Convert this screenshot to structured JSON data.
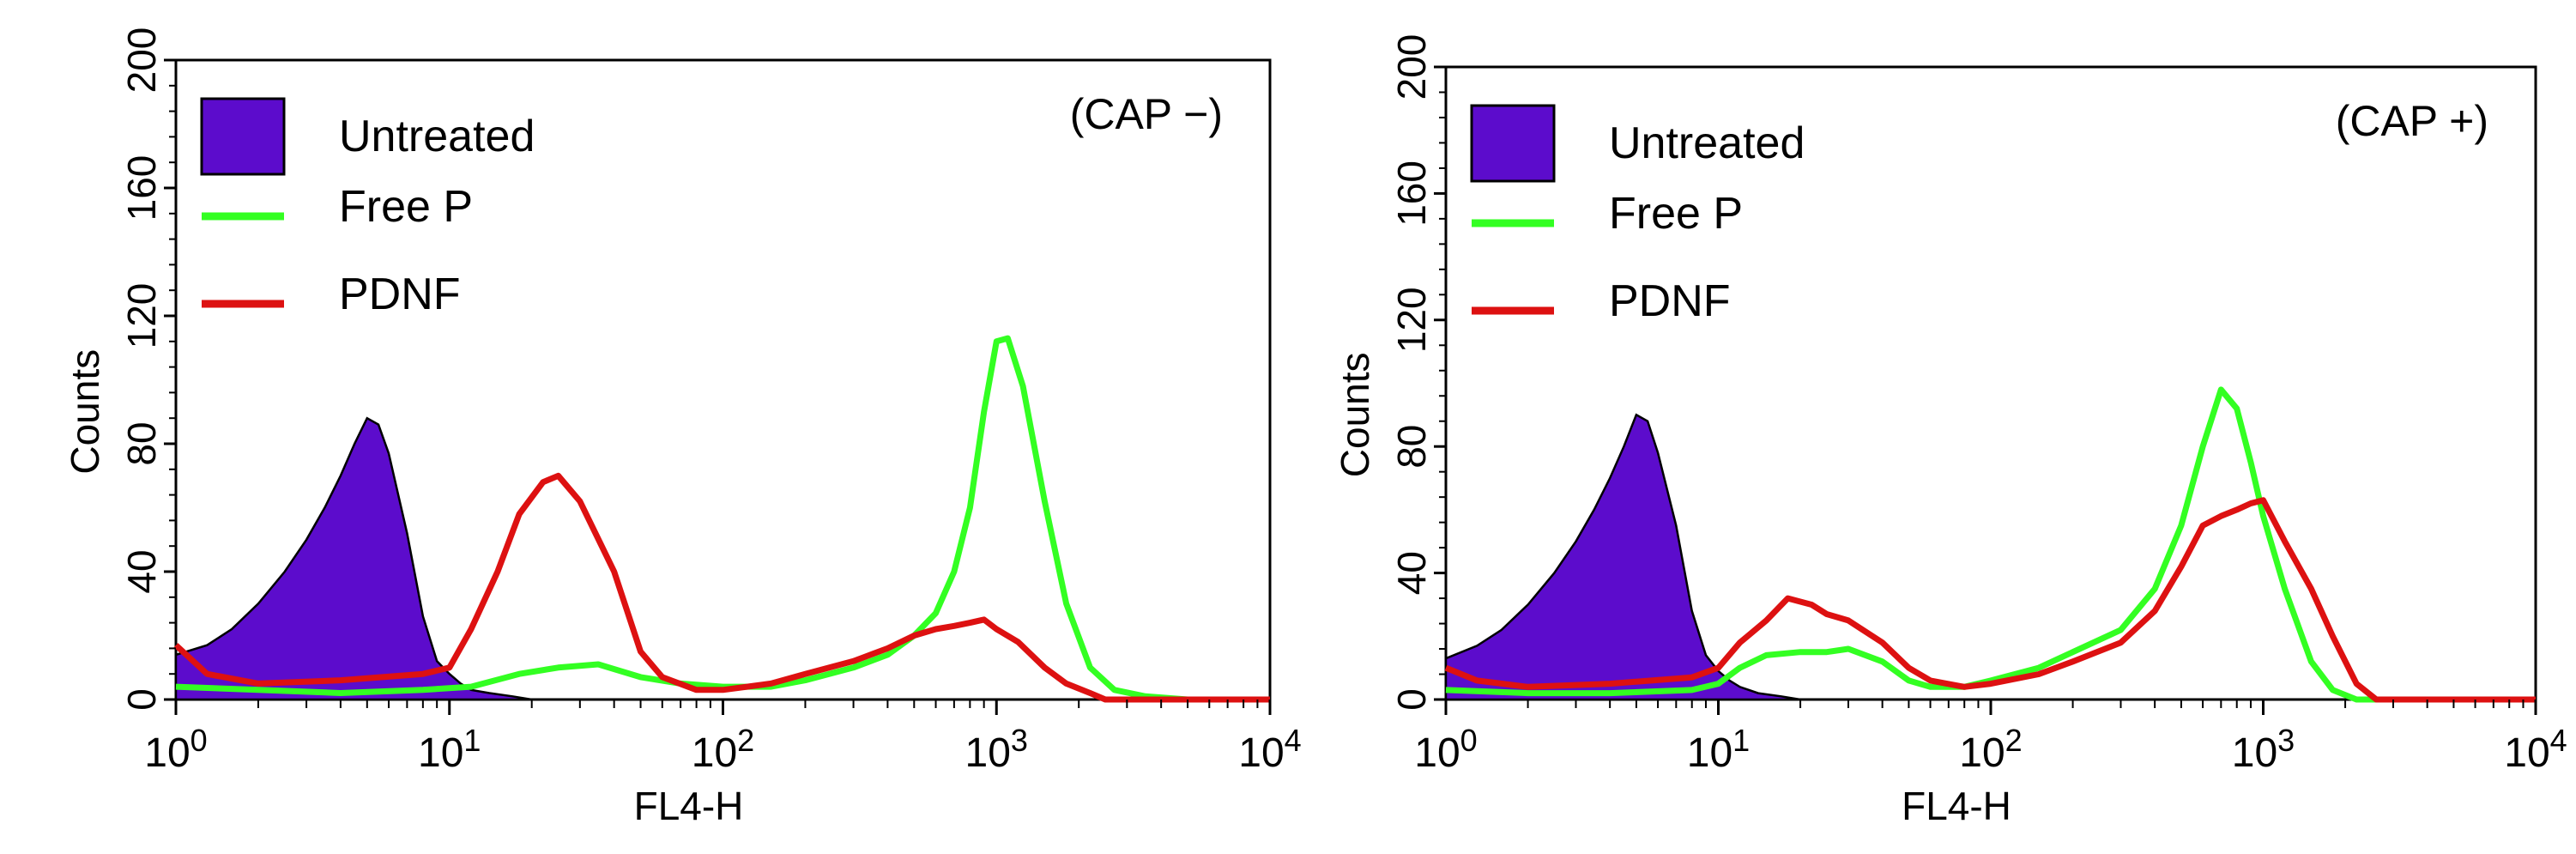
{
  "colors": {
    "untreated_fill": "#5c0ccc",
    "free_p": "#33ff22",
    "pdnf": "#dd1111",
    "axis": "#000000"
  },
  "chart_data": [
    {
      "type": "histogram",
      "title": "",
      "condition_label": "(CAP −)",
      "xlabel": "FL4-H",
      "ylabel": "Counts",
      "x_scale": "log10",
      "xlim": [
        1,
        10000
      ],
      "ylim": [
        0,
        200
      ],
      "x_ticks": [
        {
          "base": "10",
          "exp": "0"
        },
        {
          "base": "10",
          "exp": "1"
        },
        {
          "base": "10",
          "exp": "2"
        },
        {
          "base": "10",
          "exp": "3"
        },
        {
          "base": "10",
          "exp": "4"
        }
      ],
      "y_ticks": [
        "0",
        "40",
        "80",
        "120",
        "160",
        "200"
      ],
      "legend": [
        {
          "key": "untreated",
          "label": "Untreated",
          "style": "filled"
        },
        {
          "key": "free_p",
          "label": "Free P",
          "style": "line"
        },
        {
          "key": "pdnf",
          "label": "PDNF",
          "style": "line"
        }
      ],
      "series": [
        {
          "key": "untreated",
          "name": "Untreated",
          "x": [
            1,
            1.3,
            1.6,
            2,
            2.5,
            3,
            3.5,
            4,
            4.5,
            5,
            5.5,
            6,
            7,
            8,
            9,
            10,
            11,
            12,
            14,
            17,
            20
          ],
          "y": [
            14,
            17,
            22,
            30,
            40,
            50,
            60,
            70,
            80,
            88,
            86,
            77,
            52,
            26,
            12,
            8,
            5,
            3,
            2,
            1,
            0
          ]
        },
        {
          "key": "free_p",
          "name": "Free P",
          "x": [
            1,
            2,
            4,
            8,
            12,
            18,
            25,
            35,
            50,
            70,
            100,
            150,
            200,
            300,
            400,
            500,
            600,
            700,
            800,
            900,
            1000,
            1100,
            1250,
            1500,
            1800,
            2200,
            2700,
            3500,
            5000,
            10000
          ],
          "y": [
            4,
            3,
            2,
            3,
            4,
            8,
            10,
            11,
            7,
            5,
            4,
            4,
            6,
            10,
            14,
            20,
            27,
            40,
            60,
            90,
            112,
            113,
            98,
            62,
            30,
            10,
            3,
            1,
            0,
            0
          ]
        },
        {
          "key": "pdnf",
          "name": "PDNF",
          "x": [
            1,
            1.3,
            2,
            4,
            8,
            10,
            12,
            15,
            18,
            22,
            25,
            30,
            40,
            50,
            60,
            80,
            100,
            150,
            200,
            300,
            400,
            500,
            600,
            700,
            800,
            900,
            1000,
            1200,
            1500,
            1800,
            2200,
            2500,
            3000,
            10000
          ],
          "y": [
            17,
            8,
            5,
            6,
            8,
            10,
            22,
            40,
            58,
            68,
            70,
            62,
            40,
            15,
            7,
            3,
            3,
            5,
            8,
            12,
            16,
            20,
            22,
            23,
            24,
            25,
            22,
            18,
            10,
            5,
            2,
            0,
            0,
            0
          ]
        }
      ]
    },
    {
      "type": "histogram",
      "title": "",
      "condition_label": "(CAP +)",
      "xlabel": "FL4-H",
      "ylabel": "Counts",
      "x_scale": "log10",
      "xlim": [
        1,
        10000
      ],
      "ylim": [
        0,
        200
      ],
      "x_ticks": [
        {
          "base": "10",
          "exp": "0"
        },
        {
          "base": "10",
          "exp": "1"
        },
        {
          "base": "10",
          "exp": "2"
        },
        {
          "base": "10",
          "exp": "3"
        },
        {
          "base": "10",
          "exp": "4"
        }
      ],
      "y_ticks": [
        "0",
        "40",
        "80",
        "120",
        "160",
        "200"
      ],
      "legend": [
        {
          "key": "untreated",
          "label": "Untreated",
          "style": "filled"
        },
        {
          "key": "free_p",
          "label": "Free P",
          "style": "line"
        },
        {
          "key": "pdnf",
          "label": "PDNF",
          "style": "line"
        }
      ],
      "series": [
        {
          "key": "untreated",
          "name": "Untreated",
          "x": [
            1,
            1.3,
            1.6,
            2,
            2.5,
            3,
            3.5,
            4,
            4.5,
            5,
            5.5,
            6,
            7,
            8,
            9,
            10,
            11,
            12,
            14,
            17,
            20
          ],
          "y": [
            13,
            17,
            22,
            30,
            40,
            50,
            60,
            70,
            80,
            90,
            88,
            78,
            55,
            28,
            14,
            9,
            6,
            4,
            2,
            1,
            0
          ]
        },
        {
          "key": "free_p",
          "name": "Free P",
          "x": [
            1,
            2,
            4,
            8,
            10,
            12,
            15,
            20,
            25,
            30,
            40,
            50,
            60,
            80,
            100,
            150,
            200,
            300,
            400,
            500,
            600,
            700,
            800,
            900,
            1000,
            1200,
            1500,
            1800,
            2200,
            3000,
            10000
          ],
          "y": [
            3,
            2,
            2,
            3,
            5,
            10,
            14,
            15,
            15,
            16,
            12,
            6,
            4,
            4,
            6,
            10,
            15,
            22,
            35,
            55,
            80,
            98,
            92,
            75,
            58,
            35,
            12,
            3,
            0,
            0,
            0
          ]
        },
        {
          "key": "pdnf",
          "name": "PDNF",
          "x": [
            1,
            1.3,
            2,
            4,
            8,
            10,
            12,
            15,
            18,
            22,
            25,
            30,
            40,
            50,
            60,
            80,
            100,
            150,
            200,
            300,
            400,
            500,
            600,
            700,
            800,
            900,
            1000,
            1200,
            1500,
            1800,
            2200,
            2600,
            3000,
            10000
          ],
          "y": [
            10,
            6,
            4,
            5,
            7,
            10,
            18,
            25,
            32,
            30,
            27,
            25,
            18,
            10,
            6,
            4,
            5,
            8,
            12,
            18,
            28,
            42,
            55,
            58,
            60,
            62,
            63,
            50,
            35,
            20,
            5,
            0,
            0,
            0
          ]
        }
      ]
    }
  ]
}
